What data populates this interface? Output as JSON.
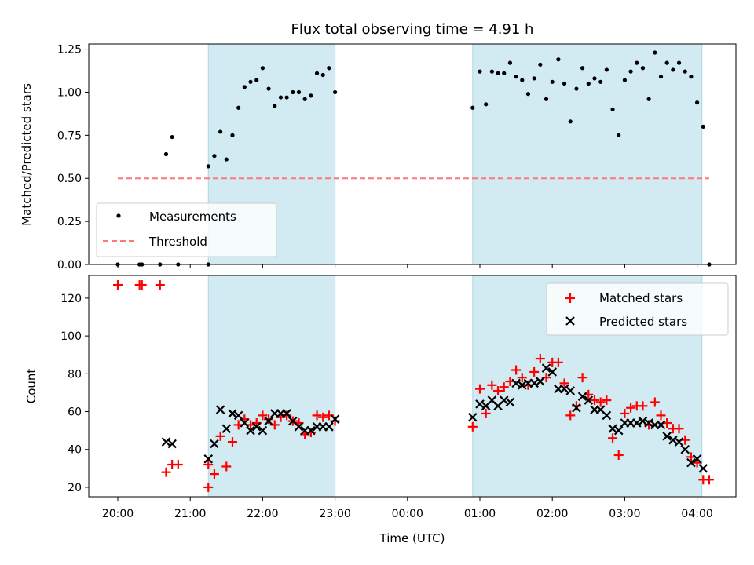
{
  "chart_data": {
    "type": "scatter",
    "title": "Flux total observing time = 4.91 h",
    "xlabel": "Time (UTC)",
    "x_ticks": [
      "20:00",
      "21:00",
      "22:00",
      "23:00",
      "00:00",
      "01:00",
      "02:00",
      "03:00",
      "04:00"
    ],
    "shaded_intervals": [
      [
        "21:15",
        "23:00"
      ],
      [
        "00:54",
        "04:04"
      ]
    ],
    "shade_color": "#add8e6",
    "top_panel": {
      "ylabel": "Matched/Predicted stars",
      "ylim": [
        0,
        1.28
      ],
      "y_ticks": [
        "0.00",
        "0.25",
        "0.50",
        "0.75",
        "1.00",
        "1.25"
      ],
      "legend_position": "lower-left",
      "threshold": {
        "name": "Threshold",
        "value": 0.5,
        "x_range": [
          "20:00",
          "04:10"
        ],
        "color": "#ff7777"
      },
      "series": [
        {
          "name": "Measurements",
          "color": "#000000",
          "points": [
            [
              "20:00",
              0
            ],
            [
              "20:18",
              0
            ],
            [
              "20:20",
              0
            ],
            [
              "20:35",
              0
            ],
            [
              "20:40",
              0.64
            ],
            [
              "20:45",
              0.74
            ],
            [
              "20:50",
              0
            ],
            [
              "21:15",
              0
            ],
            [
              "21:15",
              0.57
            ],
            [
              "21:20",
              0.63
            ],
            [
              "21:25",
              0.77
            ],
            [
              "21:30",
              0.61
            ],
            [
              "21:35",
              0.75
            ],
            [
              "21:40",
              0.91
            ],
            [
              "21:45",
              1.03
            ],
            [
              "21:50",
              1.06
            ],
            [
              "21:55",
              1.07
            ],
            [
              "22:00",
              1.14
            ],
            [
              "22:05",
              1.02
            ],
            [
              "22:10",
              0.92
            ],
            [
              "22:15",
              0.97
            ],
            [
              "22:20",
              0.97
            ],
            [
              "22:25",
              1.0
            ],
            [
              "22:30",
              1.0
            ],
            [
              "22:35",
              0.96
            ],
            [
              "22:40",
              0.98
            ],
            [
              "22:45",
              1.11
            ],
            [
              "22:50",
              1.1
            ],
            [
              "22:55",
              1.14
            ],
            [
              "23:00",
              1.0
            ],
            [
              "00:54",
              0.91
            ],
            [
              "01:00",
              1.12
            ],
            [
              "01:05",
              0.93
            ],
            [
              "01:10",
              1.12
            ],
            [
              "01:15",
              1.11
            ],
            [
              "01:20",
              1.11
            ],
            [
              "01:25",
              1.17
            ],
            [
              "01:30",
              1.09
            ],
            [
              "01:35",
              1.07
            ],
            [
              "01:40",
              0.99
            ],
            [
              "01:45",
              1.08
            ],
            [
              "01:50",
              1.16
            ],
            [
              "01:55",
              0.96
            ],
            [
              "02:00",
              1.06
            ],
            [
              "02:05",
              1.19
            ],
            [
              "02:10",
              1.05
            ],
            [
              "02:15",
              0.83
            ],
            [
              "02:20",
              1.02
            ],
            [
              "02:25",
              1.14
            ],
            [
              "02:30",
              1.05
            ],
            [
              "02:35",
              1.08
            ],
            [
              "02:40",
              1.06
            ],
            [
              "02:45",
              1.13
            ],
            [
              "02:50",
              0.9
            ],
            [
              "02:55",
              0.75
            ],
            [
              "03:00",
              1.07
            ],
            [
              "03:05",
              1.12
            ],
            [
              "03:10",
              1.17
            ],
            [
              "03:15",
              1.14
            ],
            [
              "03:20",
              0.96
            ],
            [
              "03:25",
              1.23
            ],
            [
              "03:30",
              1.09
            ],
            [
              "03:35",
              1.17
            ],
            [
              "03:40",
              1.13
            ],
            [
              "03:45",
              1.17
            ],
            [
              "03:50",
              1.12
            ],
            [
              "03:55",
              1.09
            ],
            [
              "04:00",
              0.94
            ],
            [
              "04:05",
              0.8
            ],
            [
              "04:10",
              0
            ]
          ]
        }
      ]
    },
    "bottom_panel": {
      "ylabel": "Count",
      "ylim": [
        15,
        132
      ],
      "y_ticks": [
        "20",
        "40",
        "60",
        "80",
        "100",
        "120"
      ],
      "legend_position": "upper-right",
      "series": [
        {
          "name": "Matched stars",
          "marker": "plus",
          "color": "#ff0000",
          "points": [
            [
              "20:00",
              127
            ],
            [
              "20:18",
              127
            ],
            [
              "20:20",
              127
            ],
            [
              "20:35",
              127
            ],
            [
              "20:40",
              28
            ],
            [
              "20:45",
              32
            ],
            [
              "20:50",
              32
            ],
            [
              "21:15",
              20
            ],
            [
              "21:15",
              32
            ],
            [
              "21:20",
              27
            ],
            [
              "21:25",
              47
            ],
            [
              "21:30",
              31
            ],
            [
              "21:35",
              44
            ],
            [
              "21:40",
              53
            ],
            [
              "21:45",
              56
            ],
            [
              "21:50",
              53
            ],
            [
              "21:55",
              54
            ],
            [
              "22:00",
              58
            ],
            [
              "22:05",
              56
            ],
            [
              "22:10",
              53
            ],
            [
              "22:15",
              57
            ],
            [
              "22:20",
              58
            ],
            [
              "22:25",
              55
            ],
            [
              "22:30",
              54
            ],
            [
              "22:35",
              48
            ],
            [
              "22:40",
              49
            ],
            [
              "22:45",
              58
            ],
            [
              "22:50",
              57
            ],
            [
              "22:55",
              58
            ],
            [
              "23:00",
              55
            ],
            [
              "00:54",
              52
            ],
            [
              "01:00",
              72
            ],
            [
              "01:05",
              59
            ],
            [
              "01:10",
              74
            ],
            [
              "01:15",
              71
            ],
            [
              "01:20",
              73
            ],
            [
              "01:25",
              76
            ],
            [
              "01:30",
              82
            ],
            [
              "01:35",
              78
            ],
            [
              "01:40",
              74
            ],
            [
              "01:45",
              81
            ],
            [
              "01:50",
              88
            ],
            [
              "01:55",
              78
            ],
            [
              "02:00",
              86
            ],
            [
              "02:05",
              86
            ],
            [
              "02:10",
              75
            ],
            [
              "02:15",
              58
            ],
            [
              "02:20",
              63
            ],
            [
              "02:25",
              78
            ],
            [
              "02:30",
              69
            ],
            [
              "02:35",
              66
            ],
            [
              "02:40",
              65
            ],
            [
              "02:45",
              66
            ],
            [
              "02:50",
              46
            ],
            [
              "02:55",
              37
            ],
            [
              "03:00",
              59
            ],
            [
              "03:05",
              62
            ],
            [
              "03:10",
              63
            ],
            [
              "03:15",
              63
            ],
            [
              "03:20",
              53
            ],
            [
              "03:25",
              65
            ],
            [
              "03:30",
              58
            ],
            [
              "03:35",
              54
            ],
            [
              "03:40",
              51
            ],
            [
              "03:45",
              51
            ],
            [
              "03:50",
              45
            ],
            [
              "03:55",
              36
            ],
            [
              "04:00",
              33
            ],
            [
              "04:05",
              24
            ],
            [
              "04:10",
              24
            ]
          ]
        },
        {
          "name": "Predicted stars",
          "marker": "x",
          "color": "#000000",
          "points": [
            [
              "20:40",
              44
            ],
            [
              "20:45",
              43
            ],
            [
              "21:15",
              35
            ],
            [
              "21:20",
              43
            ],
            [
              "21:25",
              61
            ],
            [
              "21:30",
              51
            ],
            [
              "21:35",
              59
            ],
            [
              "21:40",
              58
            ],
            [
              "21:45",
              54
            ],
            [
              "21:50",
              50
            ],
            [
              "21:55",
              52
            ],
            [
              "22:00",
              50
            ],
            [
              "22:05",
              55
            ],
            [
              "22:10",
              59
            ],
            [
              "22:15",
              59
            ],
            [
              "22:20",
              59
            ],
            [
              "22:25",
              55
            ],
            [
              "22:30",
              52
            ],
            [
              "22:35",
              50
            ],
            [
              "22:40",
              50
            ],
            [
              "22:45",
              52
            ],
            [
              "22:50",
              52
            ],
            [
              "22:55",
              52
            ],
            [
              "23:00",
              56
            ],
            [
              "00:54",
              57
            ],
            [
              "01:00",
              64
            ],
            [
              "01:05",
              63
            ],
            [
              "01:10",
              66
            ],
            [
              "01:15",
              63
            ],
            [
              "01:20",
              66
            ],
            [
              "01:25",
              65
            ],
            [
              "01:30",
              75
            ],
            [
              "01:35",
              74
            ],
            [
              "01:40",
              75
            ],
            [
              "01:45",
              75
            ],
            [
              "01:50",
              76
            ],
            [
              "01:55",
              83
            ],
            [
              "02:00",
              81
            ],
            [
              "02:05",
              72
            ],
            [
              "02:10",
              72
            ],
            [
              "02:15",
              71
            ],
            [
              "02:20",
              62
            ],
            [
              "02:25",
              68
            ],
            [
              "02:30",
              66
            ],
            [
              "02:35",
              61
            ],
            [
              "02:40",
              61
            ],
            [
              "02:45",
              58
            ],
            [
              "02:50",
              51
            ],
            [
              "02:55",
              50
            ],
            [
              "03:00",
              54
            ],
            [
              "03:05",
              54
            ],
            [
              "03:10",
              54
            ],
            [
              "03:15",
              55
            ],
            [
              "03:20",
              54
            ],
            [
              "03:25",
              53
            ],
            [
              "03:30",
              53
            ],
            [
              "03:35",
              47
            ],
            [
              "03:40",
              45
            ],
            [
              "03:45",
              44
            ],
            [
              "03:50",
              40
            ],
            [
              "03:55",
              33
            ],
            [
              "04:00",
              35
            ],
            [
              "04:05",
              30
            ]
          ]
        }
      ]
    }
  }
}
